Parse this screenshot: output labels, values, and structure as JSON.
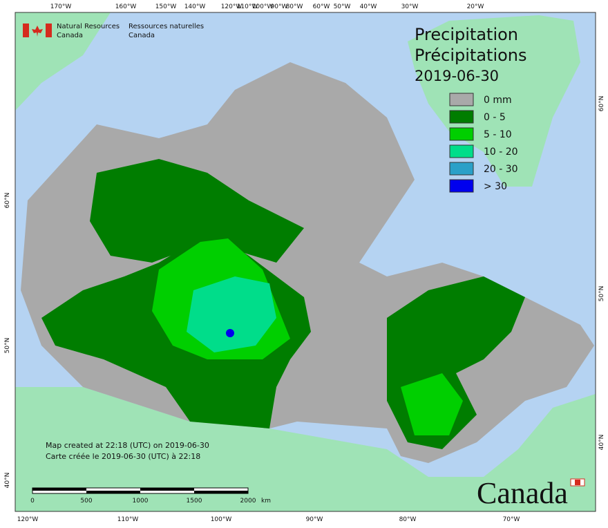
{
  "header": {
    "department_en": [
      "Natural Resources",
      "Canada"
    ],
    "department_fr": [
      "Ressources naturelles",
      "Canada"
    ]
  },
  "title": {
    "en": "Precipitation",
    "fr": "Précipitations",
    "date": "2019-06-30"
  },
  "legend": {
    "items": [
      {
        "label": "0 mm",
        "color": "#a9a9a9"
      },
      {
        "label": "0 - 5",
        "color": "#007d00"
      },
      {
        "label": "5 - 10",
        "color": "#00cf00"
      },
      {
        "label": "10 - 20",
        "color": "#00dd8a"
      },
      {
        "label": "20 - 30",
        "color": "#2aa0c8"
      },
      {
        "label": "> 30",
        "color": "#0000ee"
      }
    ]
  },
  "graticule": {
    "top": [
      "170°W",
      "160°W",
      "150°W",
      "140°W",
      "120°W",
      "110°W",
      "100°W",
      "90°W",
      "80°W",
      "60°W",
      "50°W",
      "40°W",
      "30°W",
      "20°W"
    ],
    "bottom": [
      "120°W",
      "110°W",
      "100°W",
      "90°W",
      "80°W",
      "70°W"
    ],
    "left": [
      "60°N",
      "50°N",
      "40°N"
    ],
    "right": [
      "60°N",
      "50°N",
      "40°N"
    ]
  },
  "credits": [
    "Map created at 22:18 (UTC) on 2019-06-30",
    "Carte créée le 2019-06-30 (UTC) à 22:18"
  ],
  "scale_bar": {
    "labels": [
      "0",
      "500",
      "1000",
      "1500",
      "2000"
    ],
    "unit": "km"
  },
  "wordmark": "Canada"
}
